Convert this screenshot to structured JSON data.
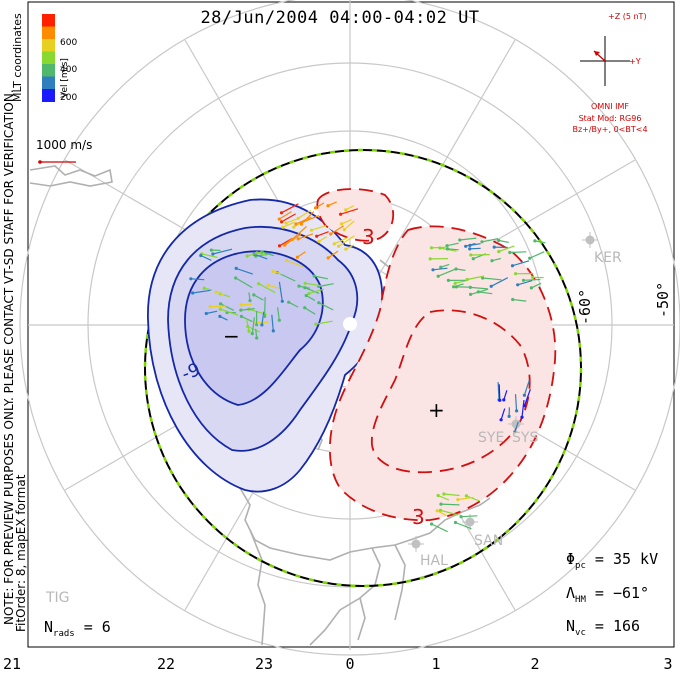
{
  "title": "28/Jun/2004 04:00-04:02 UT",
  "verification_note": "NOTE: FOR PREVIEW PURPOSES ONLY. PLEASE CONTACT VT-SD STAFF FOR VERIFICATION.",
  "fit_info": "FitOrder: 8, mapEX format",
  "coordinates_label": "MLT coordinates",
  "velocity_scale": {
    "unit_label": "Vel [m/s]",
    "ticks": [
      "200",
      "400",
      "600"
    ],
    "colors": [
      "#1a1aff",
      "#2f7fbf",
      "#4fb86a",
      "#88d830",
      "#e8d020",
      "#ff8c00",
      "#ff2000"
    ]
  },
  "reference_vector": {
    "label": "1000 m/s",
    "color": "#d40000"
  },
  "imf": {
    "plus_z": "+Z (5 nT)",
    "plus_y": "+Y",
    "source": "OMNI IMF",
    "stat_mod": "Stat Mod: RG96",
    "condition": "Bz+/By+, 0<BT<4"
  },
  "mlt_ticks": [
    "21",
    "22",
    "23",
    "0",
    "1",
    "2",
    "3"
  ],
  "lat_labels": [
    "-60°",
    "-50°"
  ],
  "radar_sites": [
    "KER",
    "SYE",
    "SYS",
    "SAN",
    "HAL",
    "TIG"
  ],
  "contours": {
    "negative_cell": {
      "label": "-9",
      "sign": "−",
      "color": "#1428a8"
    },
    "positive_cell": {
      "label": "3",
      "sign": "+",
      "color": "#d01010"
    },
    "positive_cell_upper": {
      "label": "3"
    }
  },
  "stats": {
    "phi_pc": {
      "symbol": "Φ",
      "sub": "pc",
      "value": "= 35 kV"
    },
    "lambda_hm": {
      "symbol": "Λ",
      "sub": "HM",
      "value": "= −61°"
    },
    "n_vc": {
      "symbol": "N",
      "sub": "vc",
      "value": "= 166"
    },
    "n_rads": {
      "symbol": "N",
      "sub": "rads",
      "value": "= 6"
    }
  },
  "colors": {
    "grid": "#c8c8c8",
    "coast": "#b0b0b0",
    "negative_fill": "#e6e6f6",
    "negative_inner": "#c8c8f0",
    "positive_fill": "#fbe4e4",
    "hmb": "#000000",
    "hmb_dash": "#7cd400"
  }
}
